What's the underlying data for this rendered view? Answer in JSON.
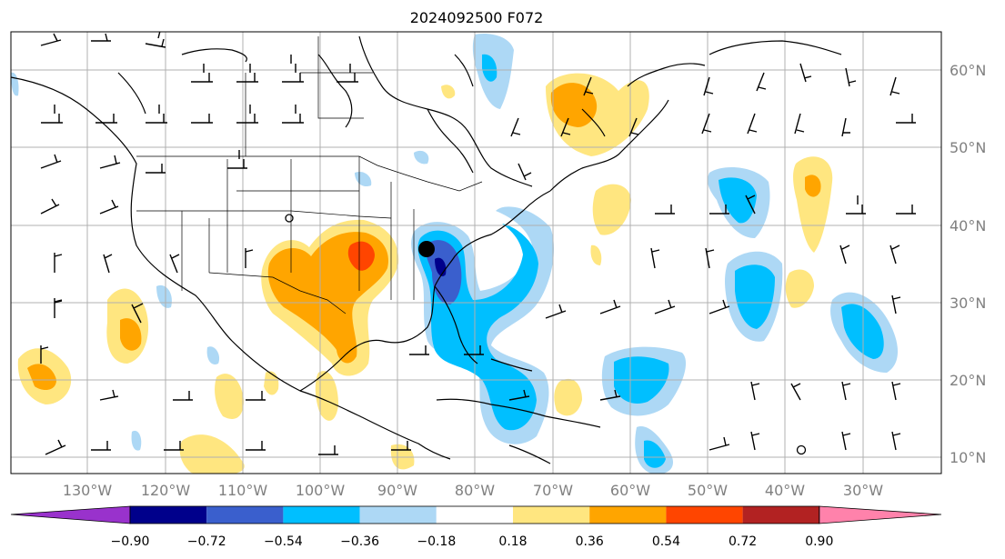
{
  "title": "2024092500 F072",
  "map": {
    "lon_labels": [
      "130°W",
      "120°W",
      "110°W",
      "100°W",
      "90°W",
      "80°W",
      "70°W",
      "60°W",
      "50°W",
      "40°W",
      "30°W"
    ],
    "lat_labels": [
      "60°N",
      "50°N",
      "40°N",
      "30°N",
      "20°N",
      "10°N"
    ],
    "lon_range": [
      -138,
      -18
    ],
    "lat_range": [
      8,
      65
    ]
  },
  "colorbar": {
    "tick_labels": [
      "−0.90",
      "−0.72",
      "−0.54",
      "−0.36",
      "−0.18",
      "0.18",
      "0.36",
      "0.54",
      "0.72",
      "0.90"
    ],
    "colors": [
      "#9932cc",
      "#00008b",
      "#3a5fcd",
      "#00bfff",
      "#add8f5",
      "#ffffff",
      "#ffe680",
      "#ffa500",
      "#ff4500",
      "#b22222",
      "#ff82ab"
    ]
  },
  "colors": {
    "coast": "#000000",
    "grid": "#b0b0b0",
    "label": "#808080"
  }
}
